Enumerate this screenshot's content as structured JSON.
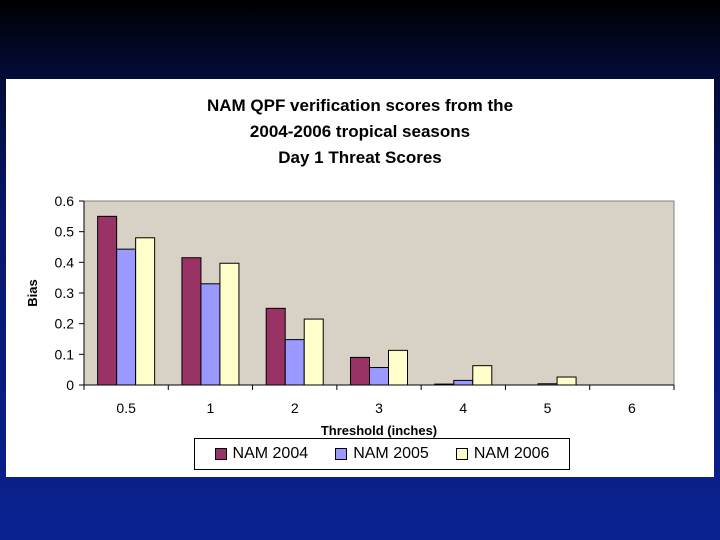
{
  "chart_data": {
    "type": "bar",
    "title_lines": [
      "NAM QPF verification scores from the",
      "2004-2006 tropical seasons",
      "Day 1 Threat Scores"
    ],
    "xlabel": "Threshold (inches)",
    "ylabel": "Bias",
    "categories": [
      "0.5",
      "1",
      "2",
      "3",
      "4",
      "5",
      "6"
    ],
    "ylim": [
      0,
      0.6
    ],
    "yticks": [
      "0",
      "0.1",
      "0.2",
      "0.3",
      "0.4",
      "0.5",
      "0.6"
    ],
    "grid": false,
    "legend_position": "bottom",
    "plot_background": "#d8d2c6",
    "series": [
      {
        "name": "NAM 2004",
        "color": "#993366",
        "values": [
          0.55,
          0.415,
          0.25,
          0.09,
          0.003,
          0.0,
          0.0
        ]
      },
      {
        "name": "NAM 2005",
        "color": "#9999ff",
        "values": [
          0.443,
          0.33,
          0.148,
          0.057,
          0.015,
          0.004,
          0.0
        ]
      },
      {
        "name": "NAM 2006",
        "color": "#ffffcc",
        "values": [
          0.48,
          0.397,
          0.215,
          0.113,
          0.063,
          0.026,
          0.0
        ]
      }
    ]
  }
}
